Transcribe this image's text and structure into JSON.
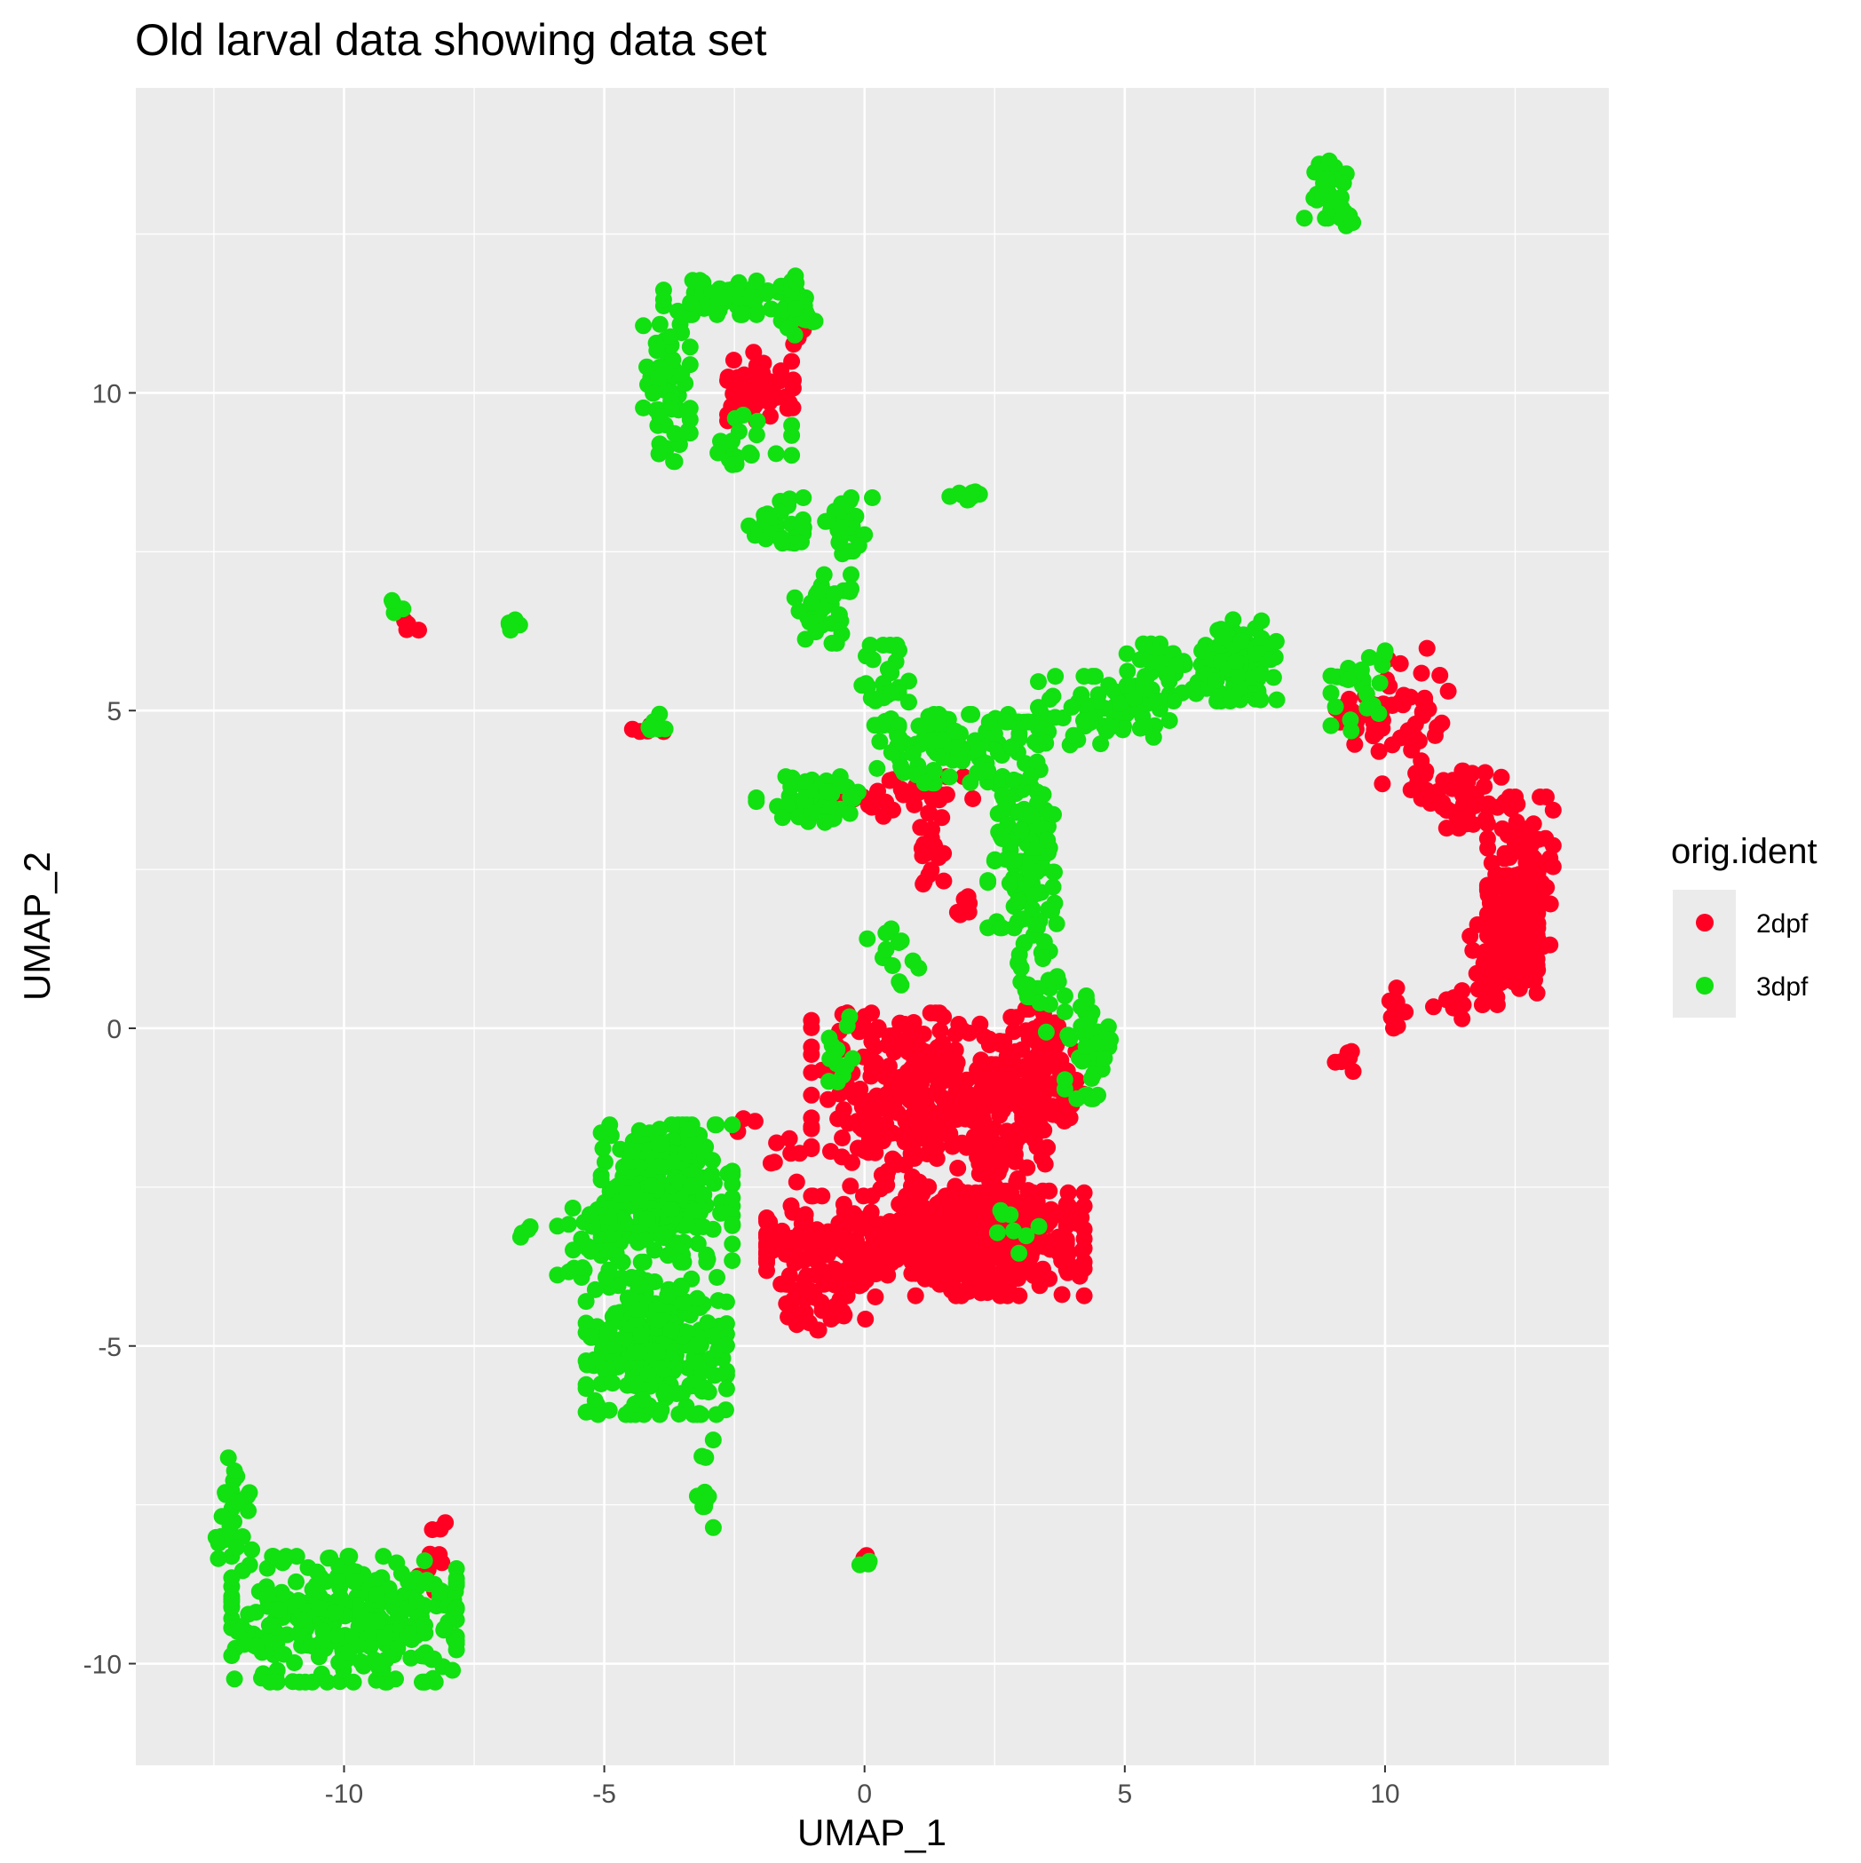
{
  "chart_data": {
    "type": "scatter",
    "title": "Old larval data showing data set",
    "xlabel": "UMAP_1",
    "ylabel": "UMAP_2",
    "xlim": [
      -14.0,
      14.3
    ],
    "ylim": [
      -11.6,
      14.8
    ],
    "xticks": [
      -10,
      -5,
      0,
      5,
      10
    ],
    "yticks": [
      -10,
      -5,
      0,
      5,
      10
    ],
    "xtick_labels": [
      "-10",
      "-5",
      "0",
      "5",
      "10"
    ],
    "ytick_labels": [
      "-10",
      "-5",
      "0",
      "5",
      "10"
    ],
    "grid": true,
    "legend": {
      "title": "orig.ident",
      "position": "right"
    },
    "series": [
      {
        "name": "2dpf",
        "color": "#ff0022",
        "clusters": [
          {
            "center": [
              1.0,
              -3.4
            ],
            "spread": [
              1.6,
              0.35
            ],
            "n": 420
          },
          {
            "center": [
              2.6,
              -3.4
            ],
            "spread": [
              0.9,
              0.45
            ],
            "n": 200
          },
          {
            "center": [
              0.6,
              -1.2
            ],
            "spread": [
              0.9,
              0.8
            ],
            "n": 220
          },
          {
            "center": [
              2.4,
              -1.3
            ],
            "spread": [
              0.8,
              0.7
            ],
            "n": 180
          },
          {
            "center": [
              3.4,
              -0.6
            ],
            "spread": [
              0.5,
              0.5
            ],
            "n": 80
          },
          {
            "center": [
              -0.6,
              -4.3
            ],
            "spread": [
              0.5,
              0.25
            ],
            "n": 40
          },
          {
            "center": [
              12.6,
              2.2
            ],
            "spread": [
              0.35,
              0.8
            ],
            "n": 160
          },
          {
            "center": [
              12.2,
              1.0
            ],
            "spread": [
              0.4,
              0.35
            ],
            "n": 60
          },
          {
            "center": [
              11.4,
              3.6
            ],
            "spread": [
              0.5,
              0.25
            ],
            "n": 50
          },
          {
            "center": [
              10.5,
              4.9
            ],
            "spread": [
              0.4,
              0.6
            ],
            "n": 40
          },
          {
            "center": [
              9.6,
              5.0
            ],
            "spread": [
              0.3,
              0.3
            ],
            "n": 25
          },
          {
            "center": [
              10.2,
              0.2
            ],
            "spread": [
              0.15,
              0.3
            ],
            "n": 10
          },
          {
            "center": [
              9.2,
              -0.5
            ],
            "spread": [
              0.2,
              0.1
            ],
            "n": 6
          },
          {
            "center": [
              11.2,
              0.3
            ],
            "spread": [
              0.2,
              0.1
            ],
            "n": 5
          },
          {
            "center": [
              -2.0,
              10.1
            ],
            "spread": [
              0.35,
              0.3
            ],
            "n": 50
          },
          {
            "center": [
              -1.3,
              10.9
            ],
            "spread": [
              0.1,
              0.1
            ],
            "n": 6
          },
          {
            "center": [
              1.0,
              3.6
            ],
            "spread": [
              0.6,
              0.2
            ],
            "n": 30
          },
          {
            "center": [
              1.3,
              2.9
            ],
            "spread": [
              0.15,
              0.35
            ],
            "n": 20
          },
          {
            "center": [
              -0.4,
              3.6
            ],
            "spread": [
              0.3,
              0.1
            ],
            "n": 8
          },
          {
            "center": [
              1.9,
              1.9
            ],
            "spread": [
              0.1,
              0.1
            ],
            "n": 6
          },
          {
            "center": [
              -8.3,
              -8.5
            ],
            "spread": [
              0.15,
              0.4
            ],
            "n": 10
          },
          {
            "center": [
              -4.1,
              4.7
            ],
            "spread": [
              0.2,
              0.05
            ],
            "n": 5
          },
          {
            "center": [
              -8.7,
              6.3
            ],
            "spread": [
              0.1,
              0.08
            ],
            "n": 4
          },
          {
            "center": [
              0.0,
              -8.3
            ],
            "spread": [
              0.05,
              0.05
            ],
            "n": 2
          },
          {
            "center": [
              -1.6,
              -1.7
            ],
            "spread": [
              0.5,
              0.4
            ],
            "n": 10
          }
        ]
      },
      {
        "name": "3dpf",
        "color": "#11e011",
        "clusters": [
          {
            "center": [
              -10.0,
              -9.3
            ],
            "spread": [
              1.2,
              0.55
            ],
            "n": 300
          },
          {
            "center": [
              -12.1,
              -7.6
            ],
            "spread": [
              0.2,
              0.5
            ],
            "n": 25
          },
          {
            "center": [
              -4.0,
              -5.0
            ],
            "spread": [
              0.75,
              0.6
            ],
            "n": 260
          },
          {
            "center": [
              -3.8,
              -2.6
            ],
            "spread": [
              0.7,
              0.6
            ],
            "n": 230
          },
          {
            "center": [
              -5.0,
              -3.2
            ],
            "spread": [
              0.5,
              0.4
            ],
            "n": 60
          },
          {
            "center": [
              -3.0,
              -7.2
            ],
            "spread": [
              0.15,
              0.4
            ],
            "n": 10
          },
          {
            "center": [
              -6.5,
              -3.2
            ],
            "spread": [
              0.1,
              0.05
            ],
            "n": 4
          },
          {
            "center": [
              -3.8,
              10.0
            ],
            "spread": [
              0.25,
              0.6
            ],
            "n": 60
          },
          {
            "center": [
              -2.6,
              11.5
            ],
            "spread": [
              0.7,
              0.15
            ],
            "n": 60
          },
          {
            "center": [
              -1.4,
              11.3
            ],
            "spread": [
              0.25,
              0.3
            ],
            "n": 30
          },
          {
            "center": [
              -2.3,
              9.2
            ],
            "spread": [
              0.5,
              0.25
            ],
            "n": 20
          },
          {
            "center": [
              -1.5,
              7.9
            ],
            "spread": [
              0.4,
              0.25
            ],
            "n": 30
          },
          {
            "center": [
              -0.3,
              7.9
            ],
            "spread": [
              0.25,
              0.25
            ],
            "n": 25
          },
          {
            "center": [
              -0.8,
              6.6
            ],
            "spread": [
              0.3,
              0.3
            ],
            "n": 35
          },
          {
            "center": [
              0.4,
              5.4
            ],
            "spread": [
              0.25,
              0.35
            ],
            "n": 35
          },
          {
            "center": [
              1.5,
              4.4
            ],
            "spread": [
              0.7,
              0.3
            ],
            "n": 90
          },
          {
            "center": [
              3.0,
              3.2
            ],
            "spread": [
              0.35,
              0.9
            ],
            "n": 120
          },
          {
            "center": [
              3.4,
              1.2
            ],
            "spread": [
              0.25,
              0.7
            ],
            "n": 40
          },
          {
            "center": [
              4.3,
              -0.3
            ],
            "spread": [
              0.25,
              0.45
            ],
            "n": 40
          },
          {
            "center": [
              -1.0,
              3.6
            ],
            "spread": [
              0.6,
              0.2
            ],
            "n": 45
          },
          {
            "center": [
              4.6,
              5.0
            ],
            "spread": [
              0.7,
              0.3
            ],
            "n": 70
          },
          {
            "center": [
              6.3,
              5.6
            ],
            "spread": [
              0.7,
              0.25
            ],
            "n": 70
          },
          {
            "center": [
              7.2,
              5.8
            ],
            "spread": [
              0.4,
              0.35
            ],
            "n": 60
          },
          {
            "center": [
              9.5,
              5.4
            ],
            "spread": [
              0.3,
              0.4
            ],
            "n": 25
          },
          {
            "center": [
              8.9,
              13.2
            ],
            "spread": [
              0.25,
              0.25
            ],
            "n": 30
          },
          {
            "center": [
              9.2,
              12.8
            ],
            "spread": [
              0.1,
              0.1
            ],
            "n": 8
          },
          {
            "center": [
              2.0,
              8.4
            ],
            "spread": [
              0.2,
              0.05
            ],
            "n": 12
          },
          {
            "center": [
              -4.1,
              4.8
            ],
            "spread": [
              0.15,
              0.08
            ],
            "n": 10
          },
          {
            "center": [
              -6.8,
              6.3
            ],
            "spread": [
              0.1,
              0.08
            ],
            "n": 6
          },
          {
            "center": [
              -8.9,
              6.6
            ],
            "spread": [
              0.1,
              0.08
            ],
            "n": 6
          },
          {
            "center": [
              0.5,
              1.4
            ],
            "spread": [
              0.3,
              0.4
            ],
            "n": 12
          },
          {
            "center": [
              2.9,
              -3.0
            ],
            "spread": [
              0.25,
              0.3
            ],
            "n": 8
          },
          {
            "center": [
              -0.5,
              -0.5
            ],
            "spread": [
              0.15,
              0.4
            ],
            "n": 12
          },
          {
            "center": [
              0.0,
              -8.4
            ],
            "spread": [
              0.05,
              0.05
            ],
            "n": 3
          }
        ]
      }
    ]
  }
}
